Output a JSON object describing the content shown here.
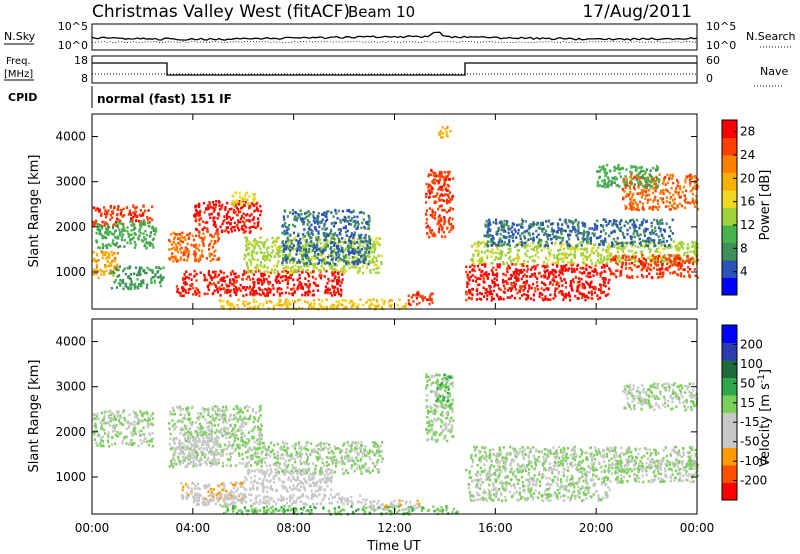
{
  "header": {
    "station": "Christmas Valley West (fitACF)",
    "beam": "Beam 10",
    "date": "17/Aug/2011"
  },
  "top_panels": {
    "nsky_label": "N.Sky",
    "nsearch_label": "N.Search",
    "nsky_ticks": [
      "10^5",
      "10^0"
    ],
    "nsearch_ticks": [
      "10^5",
      "10^0"
    ],
    "freq_label": "Freq.",
    "freq_unit": "[MHz]",
    "freq_ticks": [
      "18",
      "8"
    ],
    "nave_label": "Nave",
    "nave_ticks": [
      "60",
      "0"
    ],
    "cpid_label": "CPID",
    "cpid_text": "normal (fast) 151 IF"
  },
  "colors": {
    "power_scale": [
      "#0000ff",
      "#2a52b8",
      "#3f8f5a",
      "#47b34d",
      "#9fd23a",
      "#f0d820",
      "#f5b000",
      "#ff8000",
      "#ff4000",
      "#ff0000"
    ],
    "velocity_scale": [
      "#ff0000",
      "#ff5000",
      "#ff9a00",
      "#c8c8c8",
      "#c8c8c8",
      "#7bd05a",
      "#2ea84a",
      "#1f6a3a",
      "#2a3cb0",
      "#0000ff"
    ],
    "frame": "#000000"
  },
  "chart_data": [
    {
      "type": "heatmap",
      "title": "",
      "xlabel": "",
      "ylabel": "Slant Range [km]",
      "ylim": [
        180,
        4500
      ],
      "y_ticks": [
        "1000",
        "2000",
        "3000",
        "4000"
      ],
      "x_ticks": [
        "00:00",
        "04:00",
        "08:00",
        "12:00",
        "16:00",
        "20:00",
        "00:00"
      ],
      "xlim": [
        "00:00",
        "24:00"
      ],
      "colorbar": {
        "label": "Power [dB]",
        "range": [
          0,
          30
        ],
        "tick_labels": [
          "4",
          "8",
          "12",
          "16",
          "20",
          "24",
          "28"
        ]
      },
      "regions": [
        {
          "t": [
            0.0,
            2.4
          ],
          "r": [
            2050,
            2500
          ],
          "value": 26
        },
        {
          "t": [
            0.1,
            2.5
          ],
          "r": [
            1550,
            2150
          ],
          "value": 10
        },
        {
          "t": [
            0.0,
            1.0
          ],
          "r": [
            900,
            1500
          ],
          "value": 20
        },
        {
          "t": [
            0.7,
            2.8
          ],
          "r": [
            650,
            1150
          ],
          "value": 8
        },
        {
          "t": [
            3.0,
            5.0
          ],
          "r": [
            1250,
            1900
          ],
          "value": 24
        },
        {
          "t": [
            4.0,
            6.7
          ],
          "r": [
            1900,
            2600
          ],
          "value": 28
        },
        {
          "t": [
            5.5,
            6.5
          ],
          "r": [
            2500,
            2800
          ],
          "value": 16
        },
        {
          "t": [
            3.3,
            10.0
          ],
          "r": [
            500,
            1050
          ],
          "value": 28
        },
        {
          "t": [
            6.0,
            11.5
          ],
          "r": [
            1000,
            1800
          ],
          "value": 14
        },
        {
          "t": [
            7.5,
            11.0
          ],
          "r": [
            1200,
            2400
          ],
          "value": 6
        },
        {
          "t": [
            5.0,
            12.5
          ],
          "r": [
            200,
            420
          ],
          "value": 18
        },
        {
          "t": [
            12.5,
            13.5
          ],
          "r": [
            300,
            600
          ],
          "value": 26
        },
        {
          "t": [
            13.2,
            14.3
          ],
          "r": [
            1800,
            3300
          ],
          "value": 26
        },
        {
          "t": [
            13.7,
            14.2
          ],
          "r": [
            4000,
            4250
          ],
          "value": 20
        },
        {
          "t": [
            14.8,
            20.5
          ],
          "r": [
            400,
            1200
          ],
          "value": 28
        },
        {
          "t": [
            15.0,
            24.0
          ],
          "r": [
            1200,
            1700
          ],
          "value": 14
        },
        {
          "t": [
            15.5,
            23.0
          ],
          "r": [
            1600,
            2200
          ],
          "value": 6
        },
        {
          "t": [
            20.5,
            24.0
          ],
          "r": [
            900,
            1400
          ],
          "value": 26
        },
        {
          "t": [
            21.0,
            24.0
          ],
          "r": [
            2400,
            3200
          ],
          "value": 24
        },
        {
          "t": [
            20.0,
            22.5
          ],
          "r": [
            2900,
            3400
          ],
          "value": 10
        }
      ]
    },
    {
      "type": "heatmap",
      "title": "",
      "xlabel": "Time UT",
      "ylabel": "Slant Range [km]",
      "ylim": [
        180,
        4500
      ],
      "y_ticks": [
        "1000",
        "2000",
        "3000",
        "4000"
      ],
      "x_ticks": [
        "00:00",
        "04:00",
        "08:00",
        "12:00",
        "16:00",
        "20:00",
        "00:00"
      ],
      "xlim": [
        "00:00",
        "24:00"
      ],
      "colorbar": {
        "label": "Velocity [m s^-1]",
        "range": [
          -250,
          250
        ],
        "tick_labels": [
          "200",
          "100",
          "50",
          "15",
          "-15",
          "-50",
          "-100",
          "-200"
        ]
      },
      "regions": [
        {
          "t": [
            0.0,
            2.4
          ],
          "r": [
            1700,
            2500
          ],
          "value": 0
        },
        {
          "t": [
            3.0,
            6.7
          ],
          "r": [
            1250,
            2600
          ],
          "value": 0
        },
        {
          "t": [
            3.2,
            5.0
          ],
          "r": [
            1300,
            1900
          ],
          "value": -60
        },
        {
          "t": [
            3.5,
            6.0
          ],
          "r": [
            500,
            900
          ],
          "value": -90
        },
        {
          "t": [
            6.0,
            9.5
          ],
          "r": [
            700,
            1200
          ],
          "value": -70
        },
        {
          "t": [
            6.5,
            11.5
          ],
          "r": [
            1100,
            1800
          ],
          "value": 0
        },
        {
          "t": [
            4.0,
            11.0
          ],
          "r": [
            400,
            650
          ],
          "value": -40
        },
        {
          "t": [
            5.0,
            14.5
          ],
          "r": [
            200,
            380
          ],
          "value": 40
        },
        {
          "t": [
            11.0,
            13.0
          ],
          "r": [
            300,
            500
          ],
          "value": -80
        },
        {
          "t": [
            13.2,
            14.3
          ],
          "r": [
            1800,
            3300
          ],
          "value": 0
        },
        {
          "t": [
            13.6,
            14.2
          ],
          "r": [
            2600,
            3300
          ],
          "value": 40
        },
        {
          "t": [
            14.8,
            20.5
          ],
          "r": [
            500,
            1200
          ],
          "value": 0
        },
        {
          "t": [
            15.0,
            24.0
          ],
          "r": [
            1200,
            1700
          ],
          "value": 0
        },
        {
          "t": [
            20.5,
            24.0
          ],
          "r": [
            900,
            1400
          ],
          "value": 0
        },
        {
          "t": [
            21.0,
            24.0
          ],
          "r": [
            2500,
            3100
          ],
          "value": 0
        }
      ]
    }
  ]
}
